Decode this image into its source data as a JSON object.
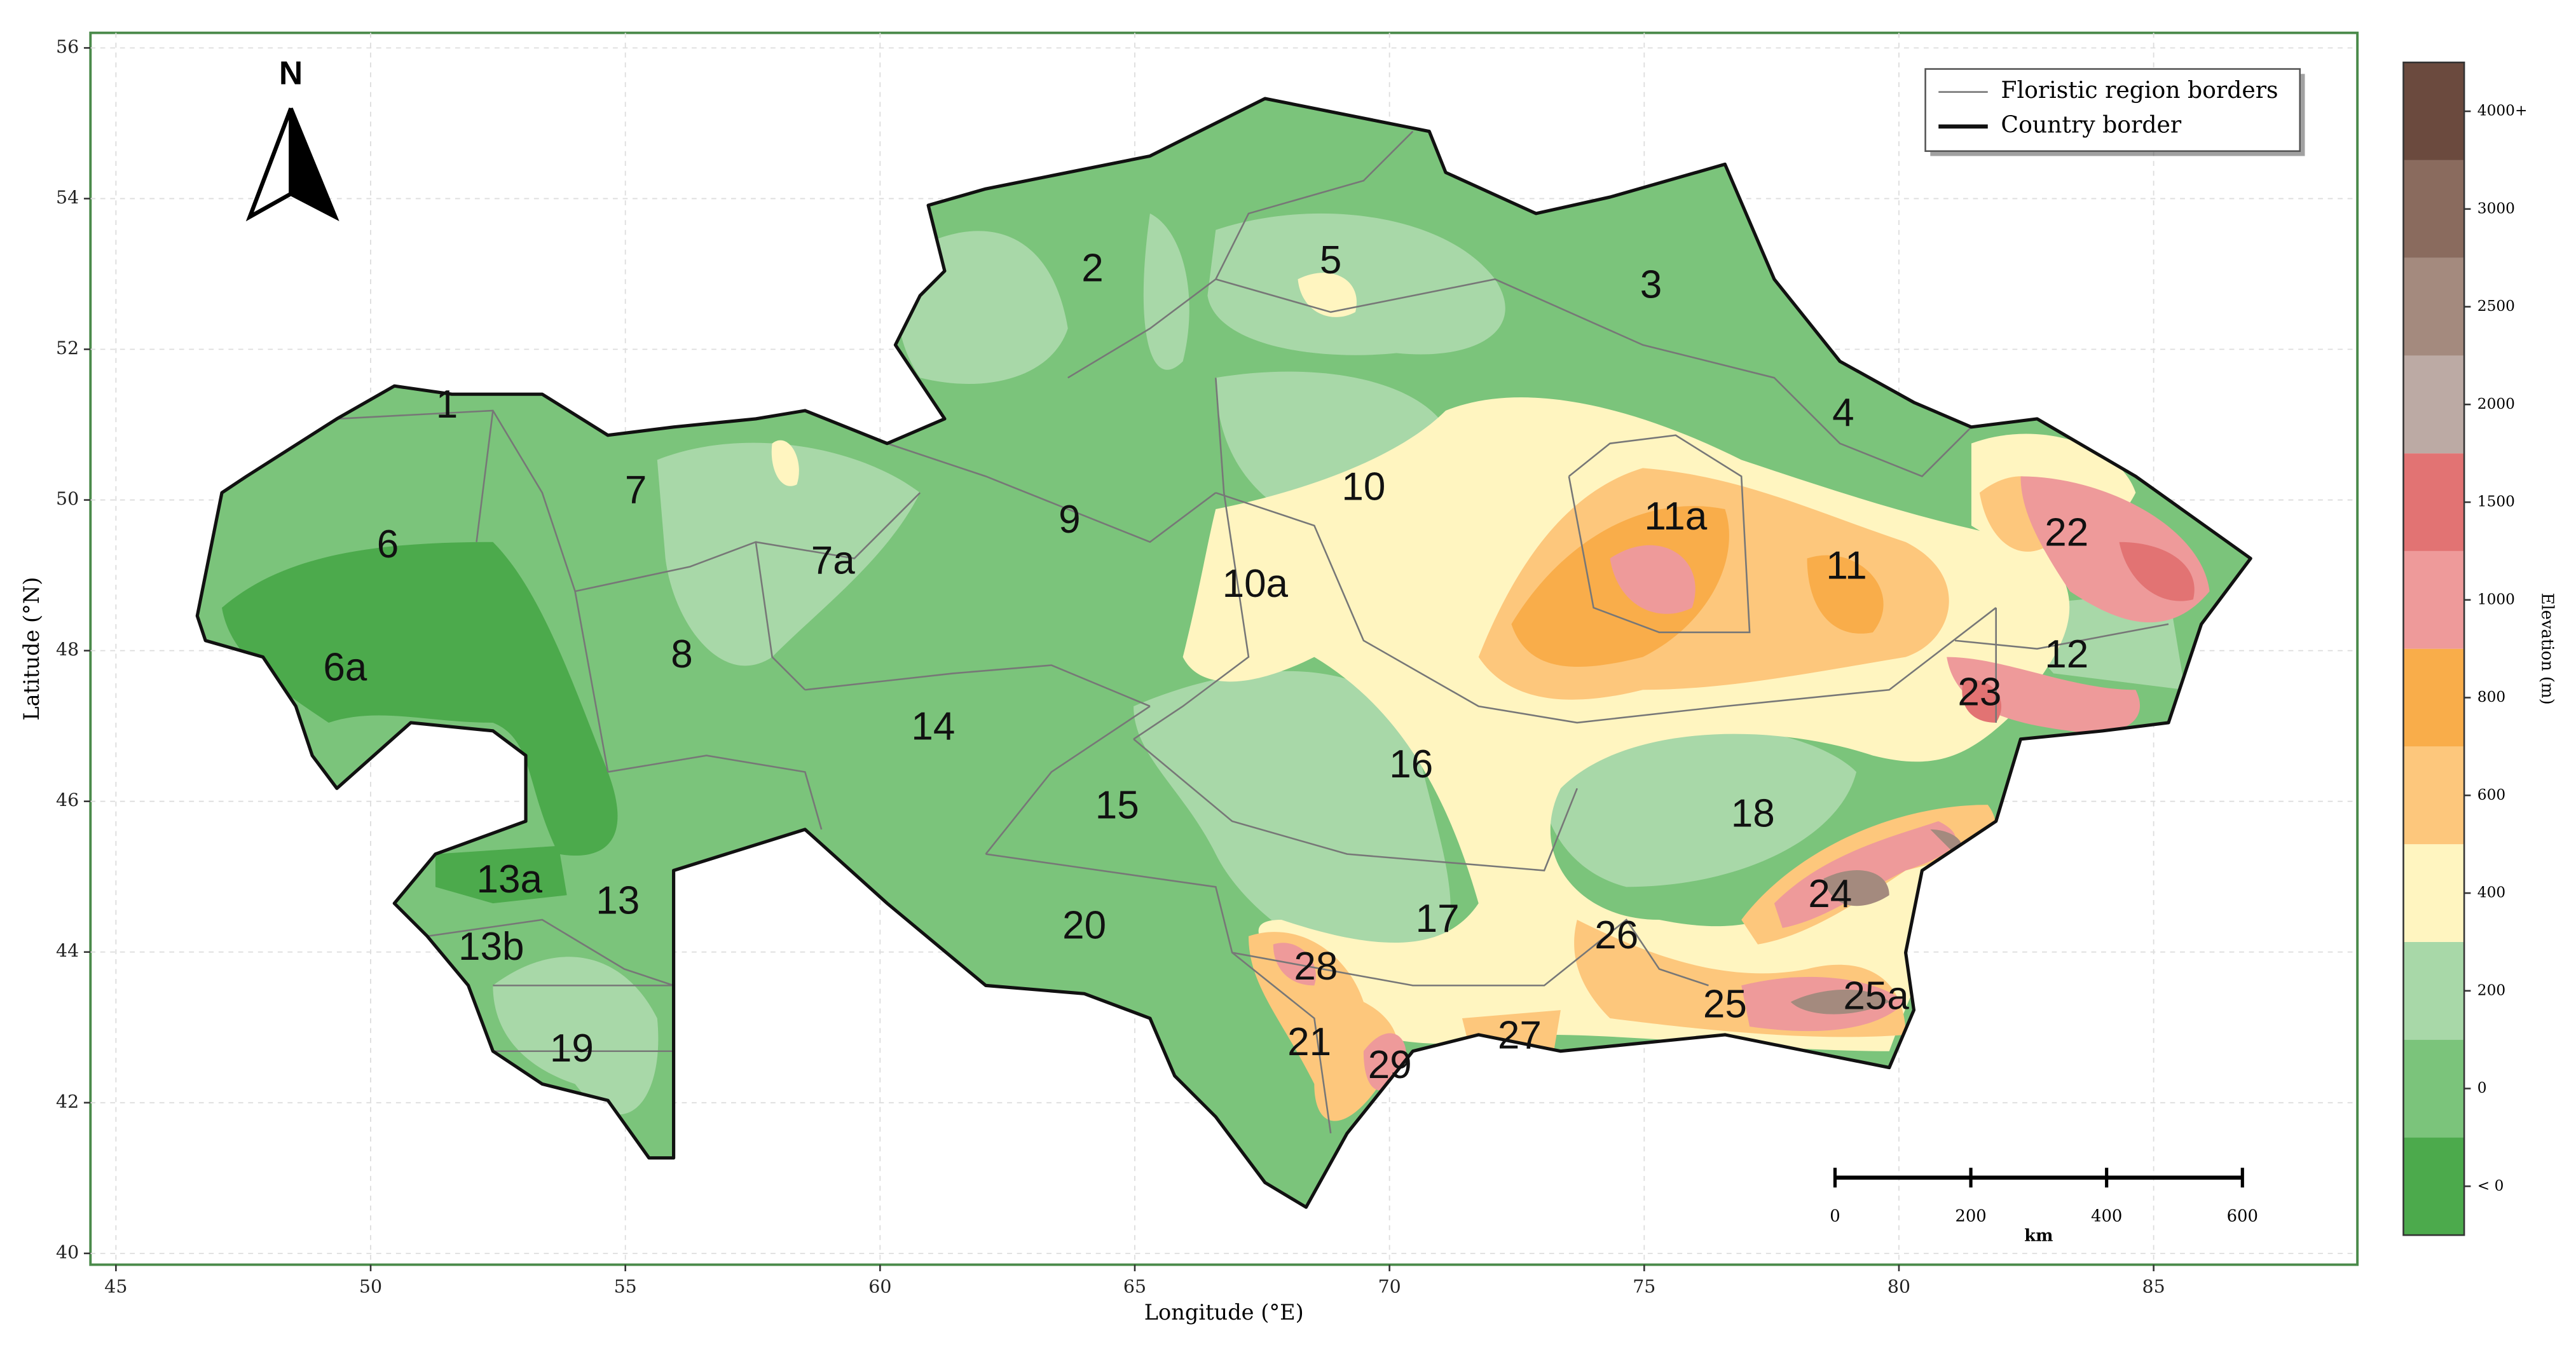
{
  "map": {
    "xlabel": "Longitude (°E)",
    "ylabel": "Latitude (°N)",
    "xlim": [
      44.5,
      89
    ],
    "ylim": [
      39.85,
      56.2
    ],
    "xticks": [
      45,
      50,
      55,
      60,
      65,
      70,
      75,
      80,
      85
    ],
    "yticks": [
      40,
      42,
      44,
      46,
      48,
      50,
      52,
      54,
      56
    ],
    "grid": true,
    "north": "N",
    "legend": [
      {
        "name": "Floristic region borders",
        "color": "#777777"
      },
      {
        "name": "Country border",
        "color": "#111111"
      }
    ],
    "regions": [
      "1",
      "2",
      "3",
      "4",
      "5",
      "6",
      "6a",
      "7",
      "7a",
      "8",
      "9",
      "10",
      "10a",
      "11a",
      "11",
      "12",
      "13a",
      "13",
      "13b",
      "14",
      "15",
      "16",
      "17",
      "18",
      "19",
      "20",
      "21",
      "22",
      "23",
      "24",
      "25a",
      "25",
      "26",
      "27",
      "28",
      "29"
    ],
    "scale_bar": {
      "ticks": [
        0,
        200,
        400,
        600
      ],
      "unit": "km"
    },
    "colorbar": {
      "title": "Elevation (m)",
      "ticks": [
        "< 0",
        0,
        200,
        400,
        600,
        800,
        1000,
        1500,
        2000,
        2500,
        3000,
        "4000+"
      ],
      "colors": [
        "#4caa4c",
        "#7bc47b",
        "#a8d8a8",
        "#fff5c0",
        "#fdc77c",
        "#f9ad4a",
        "#ee9a9a",
        "#e27373",
        "#bcaaa4",
        "#a48a7e",
        "#8a6b5e",
        "#6b4a3e"
      ]
    }
  }
}
